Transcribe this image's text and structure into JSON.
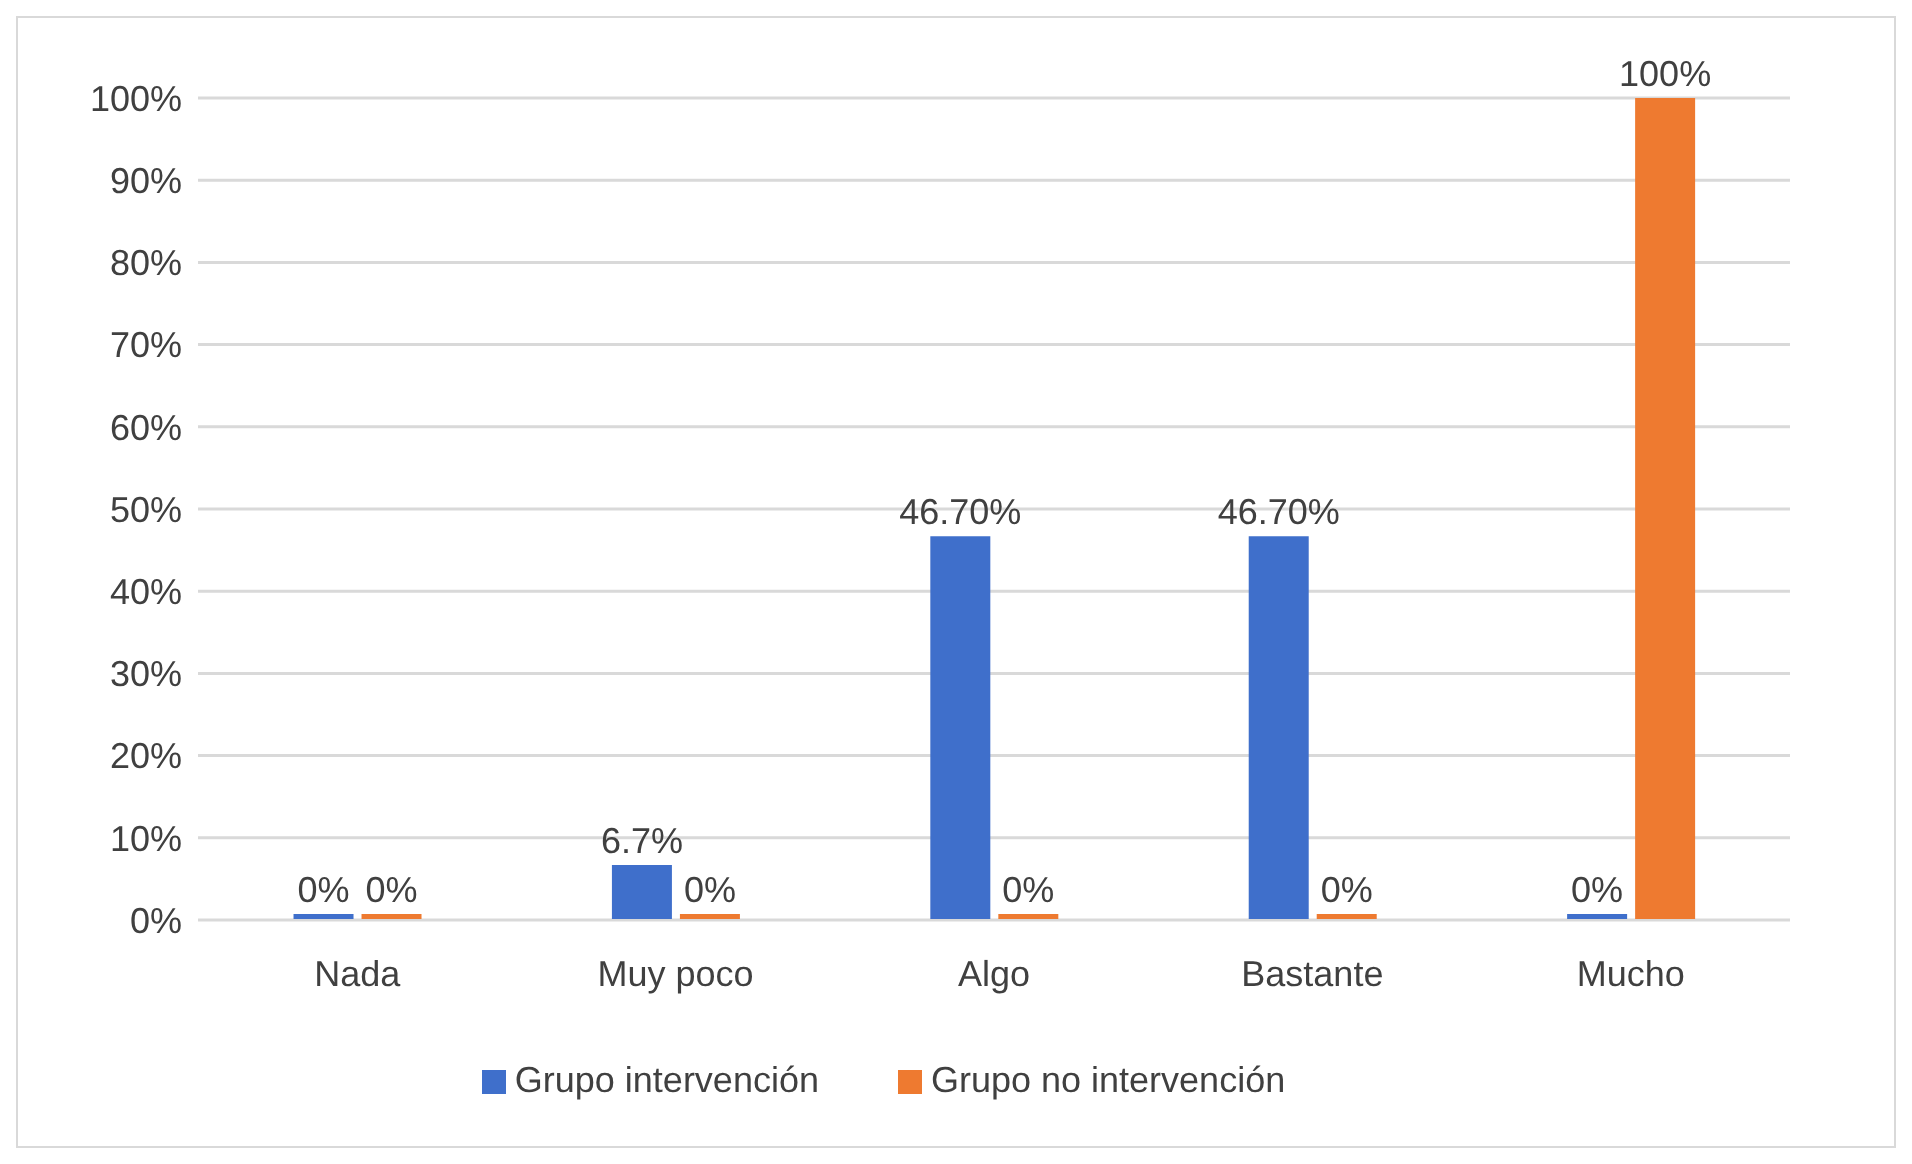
{
  "chart_data": {
    "type": "bar",
    "categories": [
      "Nada",
      "Muy poco",
      "Algo",
      "Bastante",
      "Mucho"
    ],
    "series": [
      {
        "name": "Grupo intervención",
        "color": "#3f6fcb",
        "values": [
          0,
          6.7,
          46.7,
          46.7,
          0
        ],
        "value_labels": [
          "0%",
          "6.7%",
          "46.70%",
          "46.70%",
          "0%"
        ]
      },
      {
        "name": "Grupo no intervención",
        "color": "#ee7a30",
        "values": [
          0,
          0,
          0,
          0,
          100
        ],
        "value_labels": [
          "0%",
          "0%",
          "0%",
          "0%",
          "100%"
        ]
      }
    ],
    "ylim": [
      0,
      100
    ],
    "yticks": [
      {
        "value": 0,
        "label": "0%"
      },
      {
        "value": 10,
        "label": "10%"
      },
      {
        "value": 20,
        "label": "20%"
      },
      {
        "value": 30,
        "label": "30%"
      },
      {
        "value": 40,
        "label": "40%"
      },
      {
        "value": 50,
        "label": "50%"
      },
      {
        "value": 60,
        "label": "60%"
      },
      {
        "value": 70,
        "label": "70%"
      },
      {
        "value": 80,
        "label": "80%"
      },
      {
        "value": 90,
        "label": "90%"
      },
      {
        "value": 100,
        "label": "100%"
      }
    ],
    "grid": "y",
    "legend": "bottom"
  }
}
